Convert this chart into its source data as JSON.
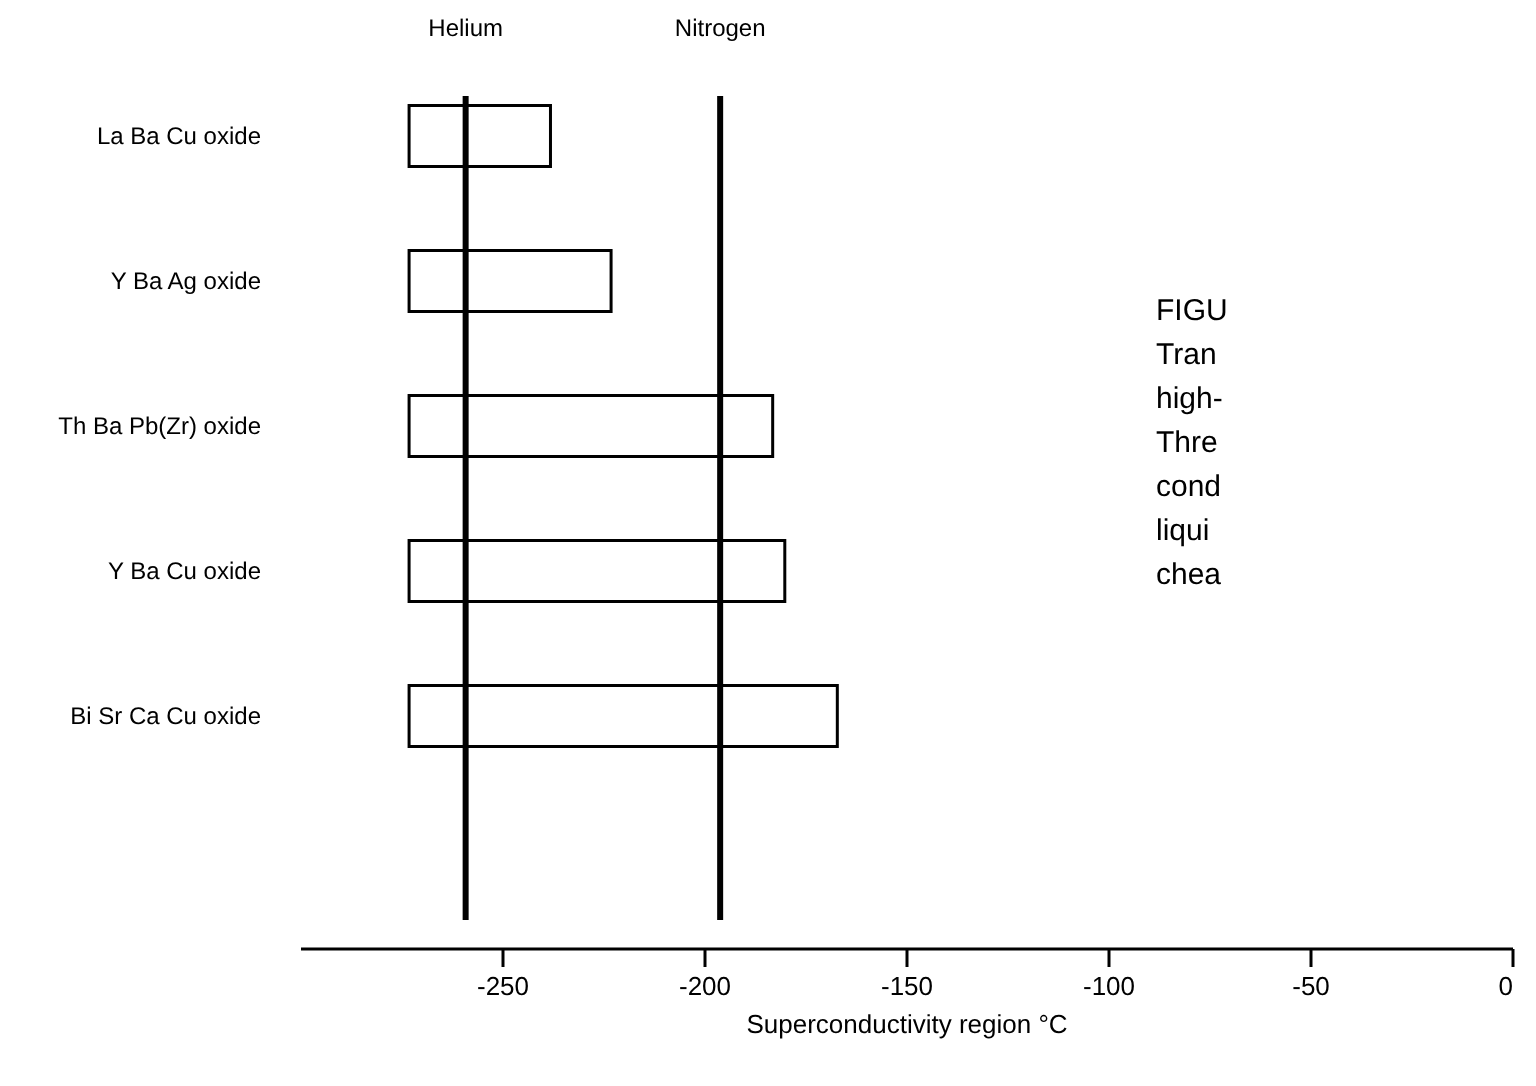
{
  "chart_data": {
    "type": "bar",
    "orientation": "horizontal",
    "xlabel": "Superconductivity region °C",
    "categories": [
      "La Ba Cu oxide",
      "Y Ba Ag oxide",
      "Th Ba Pb(Zr) oxide",
      "Y Ba Cu oxide",
      "Bi Sr Ca Cu oxide"
    ],
    "base": [
      -273,
      -273,
      -273,
      -273,
      -273
    ],
    "values": [
      35,
      50,
      90,
      93,
      106
    ],
    "color": "#ffffff",
    "xlim": [
      -300,
      0
    ],
    "xticks": [
      -250,
      -200,
      -150,
      -100,
      -50,
      0
    ],
    "ref_lines": [
      {
        "axis": "x",
        "value": -259,
        "label": "Helium",
        "color": "#000000"
      },
      {
        "axis": "x",
        "value": -196,
        "label": "Nitrogen",
        "color": "#000000"
      }
    ],
    "annotations": [
      "FIGU",
      "Tran",
      "high-",
      "Thre",
      "cond",
      "liqui",
      "chea"
    ],
    "grid": false
  }
}
